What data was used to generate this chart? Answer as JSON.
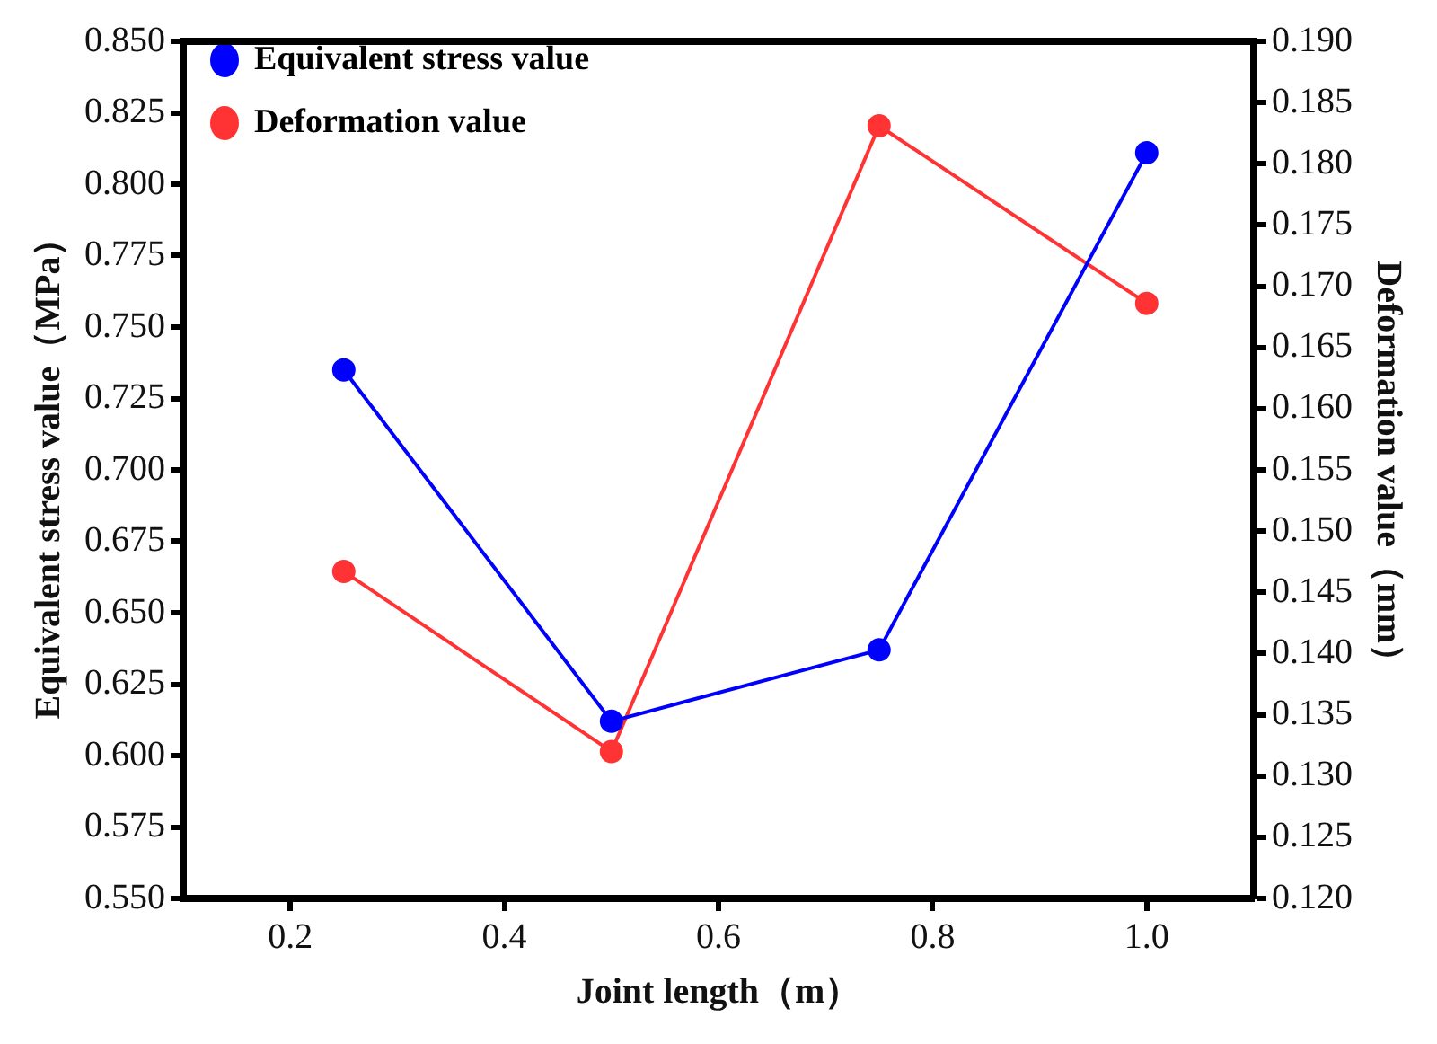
{
  "chart_data": {
    "type": "line",
    "xlabel": "Joint length（m）",
    "ylabel": "Equivalent stress value（MPa）",
    "y2label": "Deformation value（mm）",
    "x": [
      0.25,
      0.5,
      0.75,
      1.0
    ],
    "series": [
      {
        "name": "Equivalent stress value",
        "color": "#0000ff",
        "values": [
          0.735,
          0.612,
          0.637,
          0.811
        ]
      },
      {
        "name": "Deformation value",
        "color": "#ff3333",
        "axis": "y2",
        "values": [
          0.1467,
          0.132,
          0.1831,
          0.1686
        ]
      }
    ],
    "xlim": [
      0.1,
      1.1
    ],
    "xticks": [
      0.2,
      0.4,
      0.6,
      0.8,
      {
        "value": 1.0,
        "label": "1.0"
      }
    ],
    "ylim": [
      0.55,
      0.85
    ],
    "yticks": [
      {
        "value": 0.55,
        "label": "0.550"
      },
      0.575,
      {
        "value": 0.6,
        "label": "0.600"
      },
      0.625,
      {
        "value": 0.65,
        "label": "0.650"
      },
      0.675,
      {
        "value": 0.7,
        "label": "0.700"
      },
      0.725,
      {
        "value": 0.75,
        "label": "0.750"
      },
      0.775,
      {
        "value": 0.8,
        "label": "0.800"
      },
      0.825,
      {
        "value": 0.85,
        "label": "0.850"
      }
    ],
    "y2lim": [
      0.12,
      0.19
    ],
    "y2ticks": [
      {
        "value": 0.12,
        "label": "0.120"
      },
      0.125,
      {
        "value": 0.13,
        "label": "0.130"
      },
      0.135,
      {
        "value": 0.14,
        "label": "0.140"
      },
      0.145,
      {
        "value": 0.15,
        "label": "0.150"
      },
      0.155,
      {
        "value": 0.16,
        "label": "0.160"
      },
      0.165,
      {
        "value": 0.17,
        "label": "0.170"
      },
      0.175,
      {
        "value": 0.18,
        "label": "0.180"
      },
      0.185,
      {
        "value": 0.19,
        "label": "0.190"
      }
    ],
    "legend": "top left",
    "marker": "circle",
    "line_style": "solid",
    "grid": false
  }
}
